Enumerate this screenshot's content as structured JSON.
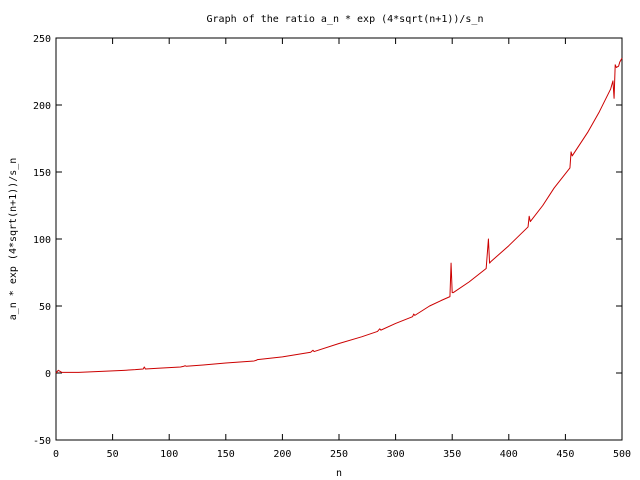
{
  "chart_data": {
    "type": "line",
    "title": "Graph of the ratio a_n * exp (4*sqrt(n+1))/s_n",
    "xlabel": "n",
    "ylabel": "a_n * exp (4*sqrt(n+1))/s_n",
    "xlim": [
      0,
      500
    ],
    "ylim": [
      -50,
      250
    ],
    "xticks": [
      0,
      50,
      100,
      150,
      200,
      250,
      300,
      350,
      400,
      450,
      500
    ],
    "yticks": [
      -50,
      0,
      50,
      100,
      150,
      200,
      250
    ],
    "grid": false,
    "legend": "none",
    "series": [
      {
        "color": "#cc0000",
        "x": [
          0,
          2,
          5,
          10,
          20,
          30,
          40,
          50,
          60,
          70,
          77,
          78,
          79,
          90,
          100,
          110,
          113,
          114,
          115,
          130,
          150,
          175,
          177,
          178,
          200,
          225,
          227,
          228,
          250,
          270,
          284,
          286,
          287,
          300,
          315,
          316,
          317,
          330,
          340,
          348,
          349,
          350,
          351,
          365,
          380,
          382,
          383,
          384,
          400,
          417,
          418,
          419,
          430,
          440,
          454,
          455,
          456,
          470,
          480,
          490,
          492,
          493,
          494,
          495,
          497,
          498,
          500
        ],
        "y": [
          0,
          2,
          0.5,
          0.5,
          0.5,
          0.8,
          1.2,
          1.6,
          2.0,
          2.5,
          3.0,
          4.5,
          3.0,
          3.5,
          4.0,
          4.5,
          5.0,
          5.5,
          5.0,
          6.0,
          7.5,
          9.0,
          9.5,
          10.0,
          12.0,
          15.5,
          17.0,
          16.0,
          22.0,
          27.0,
          31.0,
          33.0,
          32.0,
          37.0,
          42.0,
          44.0,
          43.0,
          50.0,
          54.0,
          57.0,
          82.0,
          60.0,
          60.0,
          68.0,
          78.0,
          100.0,
          82.0,
          83.0,
          95.0,
          109.0,
          117.0,
          113.0,
          125.0,
          138.0,
          153.0,
          165.0,
          162.0,
          180.0,
          195.0,
          212.0,
          218.0,
          205.0,
          230.0,
          228.0,
          229.0,
          232.0,
          235.0
        ]
      }
    ]
  }
}
